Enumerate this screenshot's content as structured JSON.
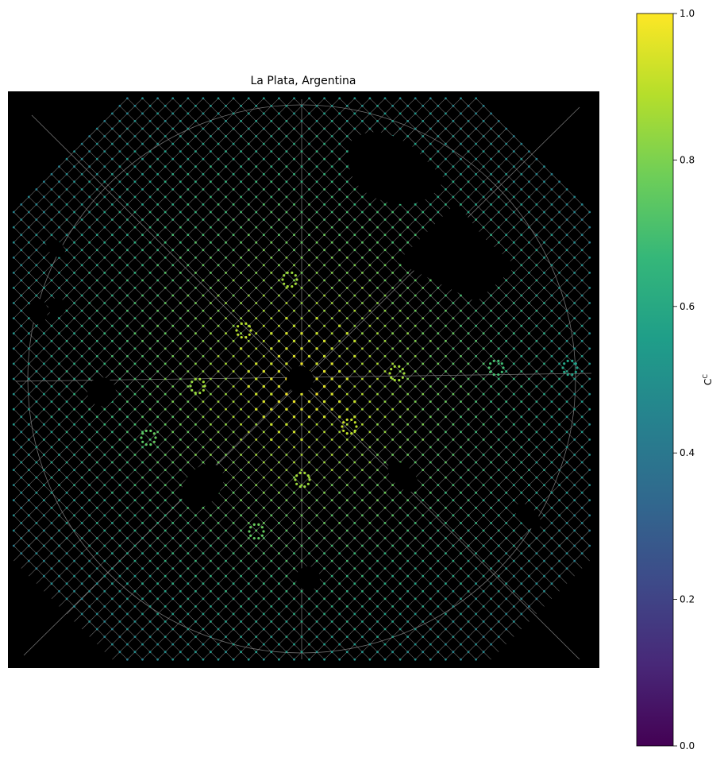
{
  "title": "La Plata, Argentina",
  "colorbar": {
    "label": "C^C",
    "label_base": "C",
    "label_sup": "C",
    "colormap": "viridis",
    "range": [
      0.0,
      1.0
    ],
    "ticks": [
      {
        "value": 0.0,
        "label": "0.0"
      },
      {
        "value": 0.2,
        "label": "0.2"
      },
      {
        "value": 0.4,
        "label": "0.4"
      },
      {
        "value": 0.6,
        "label": "0.6"
      },
      {
        "value": 0.8,
        "label": "0.8"
      },
      {
        "value": 1.0,
        "label": "1.0"
      }
    ],
    "stops": [
      "#440154",
      "#482878",
      "#3e4a89",
      "#31688e",
      "#26828e",
      "#1f9e89",
      "#35b779",
      "#6ece58",
      "#b5de2b",
      "#fde725"
    ]
  },
  "map": {
    "background": "#000000",
    "edge_color": "#9a9a9a"
  }
}
